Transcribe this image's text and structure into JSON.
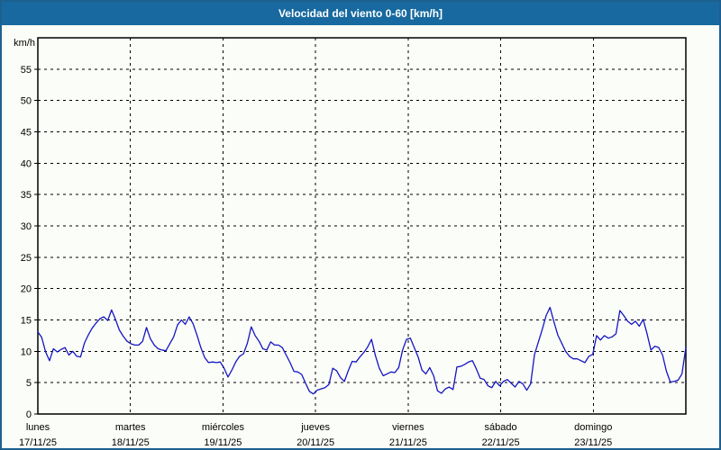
{
  "window": {
    "title": "Velocidad del viento 0-60 [km/h]"
  },
  "colors": {
    "titlebar_background": "#17699f",
    "window_border": "#1d6090",
    "page_background": "#fbfdf8",
    "plot_border": "#000000",
    "gridline": "#000000",
    "line": "#1515c3"
  },
  "chart_data": {
    "type": "line",
    "title": "Velocidad del viento 0-60 [km/h]",
    "unit_label": "km/h",
    "ylabel": "km/h",
    "ylim": [
      0,
      60
    ],
    "yticks": [
      0,
      5,
      10,
      15,
      20,
      25,
      30,
      35,
      40,
      45,
      50,
      55
    ],
    "grid": true,
    "legend": "none",
    "x_axis_mode": "7 days, hourly samples, day boundaries as dashed vertical gridlines, labels centered on each day start",
    "days": [
      {
        "name": "lunes",
        "date": "17/11/25"
      },
      {
        "name": "martes",
        "date": "18/11/25"
      },
      {
        "name": "miércoles",
        "date": "19/11/25"
      },
      {
        "name": "jueves",
        "date": "20/11/25"
      },
      {
        "name": "viernes",
        "date": "21/11/25"
      },
      {
        "name": "sábado",
        "date": "22/11/25"
      },
      {
        "name": "domingo",
        "date": "23/11/25"
      }
    ],
    "series": [
      {
        "name": "Velocidad del viento (km/h)",
        "values": [
          13.1,
          12.2,
          9.9,
          8.5,
          10.4,
          9.9,
          10.3,
          10.6,
          9.4,
          10.0,
          9.2,
          9.1,
          11.3,
          12.6,
          13.7,
          14.5,
          15.2,
          15.5,
          14.9,
          16.6,
          15.1,
          13.4,
          12.4,
          11.6,
          11.2,
          11.0,
          11.0,
          11.6,
          13.8,
          12.0,
          11.0,
          10.4,
          10.2,
          10.1,
          11.2,
          12.3,
          14.2,
          15.0,
          14.3,
          15.5,
          14.4,
          12.6,
          10.6,
          9.0,
          8.2,
          8.3,
          8.2,
          8.3,
          7.3,
          5.9,
          7.0,
          8.3,
          9.2,
          9.6,
          11.3,
          13.9,
          12.5,
          11.6,
          10.4,
          10.2,
          11.5,
          11.0,
          11.0,
          10.6,
          9.4,
          8.2,
          6.8,
          6.7,
          6.3,
          4.9,
          3.6,
          3.2,
          3.8,
          4.0,
          4.2,
          4.7,
          7.3,
          6.9,
          5.8,
          5.2,
          6.9,
          8.4,
          8.3,
          9.1,
          9.8,
          10.7,
          11.9,
          9.3,
          7.3,
          6.1,
          6.4,
          6.7,
          6.6,
          7.4,
          10.2,
          11.9,
          12.1,
          10.6,
          9.1,
          7.0,
          6.4,
          7.4,
          6.1,
          3.7,
          3.3,
          4.0,
          4.3,
          3.9,
          7.5,
          7.6,
          7.9,
          8.3,
          8.5,
          7.2,
          5.7,
          5.5,
          4.5,
          4.2,
          5.2,
          4.5,
          5.2,
          5.5,
          4.9,
          4.3,
          5.2,
          4.8,
          3.8,
          4.8,
          9.5,
          11.5,
          13.5,
          15.7,
          17.0,
          14.7,
          12.6,
          11.3,
          10.0,
          9.2,
          8.8,
          8.8,
          8.5,
          8.2,
          9.2,
          9.5,
          12.5,
          11.8,
          12.5,
          12.1,
          12.3,
          12.8,
          16.5,
          15.7,
          14.8,
          14.3,
          14.8,
          14.0,
          15.1,
          12.8,
          10.2,
          10.8,
          10.6,
          9.4,
          6.8,
          5.1,
          5.2,
          5.4,
          6.4,
          10.6
        ]
      }
    ]
  }
}
